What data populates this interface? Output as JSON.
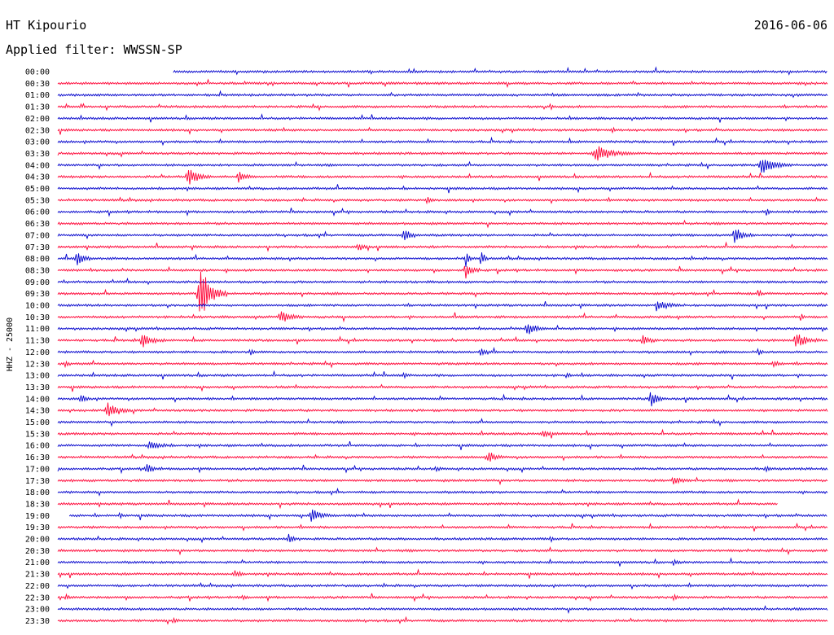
{
  "header": {
    "station": "HT Kipourio",
    "date": "2016-06-06",
    "filter": "Applied filter: WWSSN-SP"
  },
  "chart_data": {
    "type": "line",
    "title": "HT Kipourio",
    "subtitle": "Applied filter: WWSSN-SP",
    "date": "2016-06-06",
    "ylabel": "HHZ - 25000",
    "colors": {
      "odd": "#ff0033",
      "even": "#0000cc"
    },
    "rows": [
      "00:00",
      "00:30",
      "01:00",
      "01:30",
      "02:00",
      "02:30",
      "03:00",
      "03:30",
      "04:00",
      "04:30",
      "05:00",
      "05:30",
      "06:00",
      "06:30",
      "07:00",
      "07:30",
      "08:00",
      "08:30",
      "09:00",
      "09:30",
      "10:00",
      "10:30",
      "11:00",
      "11:30",
      "12:00",
      "12:30",
      "13:00",
      "13:30",
      "14:00",
      "14:30",
      "15:00",
      "15:30",
      "16:00",
      "16:30",
      "17:00",
      "17:30",
      "18:00",
      "18:30",
      "19:00",
      "19:30",
      "20:00",
      "20:30",
      "21:00",
      "21:30",
      "22:00",
      "22:30",
      "23:00",
      "23:30"
    ],
    "trace_start": {
      "0": 0.15,
      "38": 0.015
    },
    "trace_end": {
      "37": 0.935
    },
    "events": [
      {
        "row": 3,
        "pos": 0.64,
        "amp": 0.35,
        "w": 0.008
      },
      {
        "row": 5,
        "pos": 0.72,
        "amp": 0.3,
        "w": 0.008
      },
      {
        "row": 7,
        "pos": 0.7,
        "amp": 0.9,
        "w": 0.05
      },
      {
        "row": 8,
        "pos": 0.915,
        "amp": 1.0,
        "w": 0.04
      },
      {
        "row": 9,
        "pos": 0.17,
        "amp": 1.0,
        "w": 0.03
      },
      {
        "row": 9,
        "pos": 0.235,
        "amp": 0.7,
        "w": 0.02
      },
      {
        "row": 11,
        "pos": 0.48,
        "amp": 0.6,
        "w": 0.008
      },
      {
        "row": 12,
        "pos": 0.92,
        "amp": 0.5,
        "w": 0.008
      },
      {
        "row": 14,
        "pos": 0.45,
        "amp": 0.9,
        "w": 0.02
      },
      {
        "row": 14,
        "pos": 0.88,
        "amp": 1.0,
        "w": 0.025
      },
      {
        "row": 15,
        "pos": 0.39,
        "amp": 0.5,
        "w": 0.015
      },
      {
        "row": 16,
        "pos": 0.025,
        "amp": 0.9,
        "w": 0.02
      },
      {
        "row": 16,
        "pos": 0.53,
        "amp": 1.2,
        "w": 0.01
      },
      {
        "row": 16,
        "pos": 0.55,
        "amp": 1.2,
        "w": 0.01
      },
      {
        "row": 17,
        "pos": 0.53,
        "amp": 1.0,
        "w": 0.02
      },
      {
        "row": 19,
        "pos": 0.185,
        "amp": 3.5,
        "w": 0.035
      },
      {
        "row": 19,
        "pos": 0.91,
        "amp": 0.7,
        "w": 0.008
      },
      {
        "row": 20,
        "pos": 0.78,
        "amp": 0.6,
        "w": 0.03
      },
      {
        "row": 21,
        "pos": 0.29,
        "amp": 0.7,
        "w": 0.03
      },
      {
        "row": 21,
        "pos": 0.965,
        "amp": 0.6,
        "w": 0.008
      },
      {
        "row": 22,
        "pos": 0.61,
        "amp": 0.9,
        "w": 0.025
      },
      {
        "row": 23,
        "pos": 0.11,
        "amp": 0.8,
        "w": 0.03
      },
      {
        "row": 23,
        "pos": 0.76,
        "amp": 0.6,
        "w": 0.02
      },
      {
        "row": 23,
        "pos": 0.96,
        "amp": 0.9,
        "w": 0.03
      },
      {
        "row": 24,
        "pos": 0.25,
        "amp": 0.5,
        "w": 0.008
      },
      {
        "row": 24,
        "pos": 0.55,
        "amp": 0.4,
        "w": 0.02
      },
      {
        "row": 24,
        "pos": 0.91,
        "amp": 0.5,
        "w": 0.008
      },
      {
        "row": 25,
        "pos": 0.01,
        "amp": 0.4,
        "w": 0.01
      },
      {
        "row": 25,
        "pos": 0.93,
        "amp": 0.4,
        "w": 0.015
      },
      {
        "row": 26,
        "pos": 0.45,
        "amp": 0.5,
        "w": 0.008
      },
      {
        "row": 26,
        "pos": 0.66,
        "amp": 0.4,
        "w": 0.008
      },
      {
        "row": 28,
        "pos": 0.03,
        "amp": 0.5,
        "w": 0.015
      },
      {
        "row": 28,
        "pos": 0.77,
        "amp": 1.0,
        "w": 0.02
      },
      {
        "row": 29,
        "pos": 0.065,
        "amp": 0.9,
        "w": 0.03
      },
      {
        "row": 31,
        "pos": 0.63,
        "amp": 0.4,
        "w": 0.02
      },
      {
        "row": 32,
        "pos": 0.12,
        "amp": 0.5,
        "w": 0.03
      },
      {
        "row": 33,
        "pos": 0.56,
        "amp": 0.7,
        "w": 0.02
      },
      {
        "row": 34,
        "pos": 0.115,
        "amp": 0.6,
        "w": 0.02
      },
      {
        "row": 34,
        "pos": 0.49,
        "amp": 0.4,
        "w": 0.008
      },
      {
        "row": 34,
        "pos": 0.92,
        "amp": 0.4,
        "w": 0.01
      },
      {
        "row": 35,
        "pos": 0.8,
        "amp": 0.5,
        "w": 0.02
      },
      {
        "row": 38,
        "pos": 0.08,
        "amp": 0.4,
        "w": 0.008
      },
      {
        "row": 38,
        "pos": 0.33,
        "amp": 0.9,
        "w": 0.025
      },
      {
        "row": 40,
        "pos": 0.3,
        "amp": 0.5,
        "w": 0.015
      },
      {
        "row": 40,
        "pos": 0.64,
        "amp": 0.4,
        "w": 0.008
      },
      {
        "row": 42,
        "pos": 0.8,
        "amp": 0.4,
        "w": 0.008
      },
      {
        "row": 43,
        "pos": 0.23,
        "amp": 0.4,
        "w": 0.015
      },
      {
        "row": 45,
        "pos": 0.01,
        "amp": 0.4,
        "w": 0.01
      },
      {
        "row": 45,
        "pos": 0.24,
        "amp": 0.3,
        "w": 0.008
      },
      {
        "row": 45,
        "pos": 0.8,
        "amp": 0.4,
        "w": 0.008
      },
      {
        "row": 47,
        "pos": 0.15,
        "amp": 0.3,
        "w": 0.01
      }
    ]
  }
}
